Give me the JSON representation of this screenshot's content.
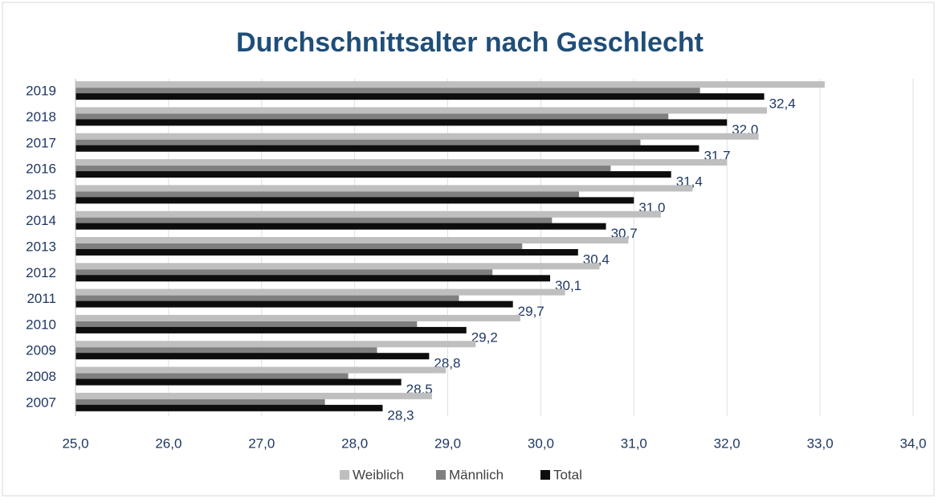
{
  "chart_data": {
    "type": "hbar",
    "title": "Durchschnittsalter nach Geschlecht",
    "categories": [
      "2019",
      "2018",
      "2017",
      "2016",
      "2015",
      "2014",
      "2013",
      "2012",
      "2011",
      "2010",
      "2009",
      "2008",
      "2007"
    ],
    "series": [
      {
        "name": "Weiblich",
        "color": "#bfbfbf",
        "values": [
          33.05,
          32.43,
          32.34,
          32.0,
          31.63,
          31.29,
          30.94,
          30.63,
          30.26,
          29.78,
          29.3,
          28.98,
          28.83
        ]
      },
      {
        "name": "Männlich",
        "color": "#7f7f7f",
        "values": [
          31.71,
          31.37,
          31.07,
          30.75,
          30.41,
          30.12,
          29.8,
          29.48,
          29.12,
          28.67,
          28.24,
          27.93,
          27.68
        ]
      },
      {
        "name": "Total",
        "color": "#0d0d0d",
        "values": [
          32.4,
          32.0,
          31.7,
          31.4,
          31.0,
          30.7,
          30.4,
          30.1,
          29.7,
          29.2,
          28.8,
          28.5,
          28.3
        ],
        "value_labels": [
          "32,4",
          "32,0",
          "31,7",
          "31,4",
          "31,0",
          "30,7",
          "30,4",
          "30,1",
          "29,7",
          "29,2",
          "28,8",
          "28,5",
          "28,3"
        ]
      }
    ],
    "xlim": [
      25,
      34
    ],
    "xticks": [
      {
        "value": 25,
        "label": "25,0"
      },
      {
        "value": 26,
        "label": "26,0"
      },
      {
        "value": 27,
        "label": "27,0"
      },
      {
        "value": 28,
        "label": "28,0"
      },
      {
        "value": 29,
        "label": "29,0"
      },
      {
        "value": 30,
        "label": "30,0"
      },
      {
        "value": 31,
        "label": "31,0"
      },
      {
        "value": 32,
        "label": "32,0"
      },
      {
        "value": 33,
        "label": "33,0"
      },
      {
        "value": 34,
        "label": "34,0"
      }
    ],
    "grid": true,
    "legend": "bottom"
  }
}
